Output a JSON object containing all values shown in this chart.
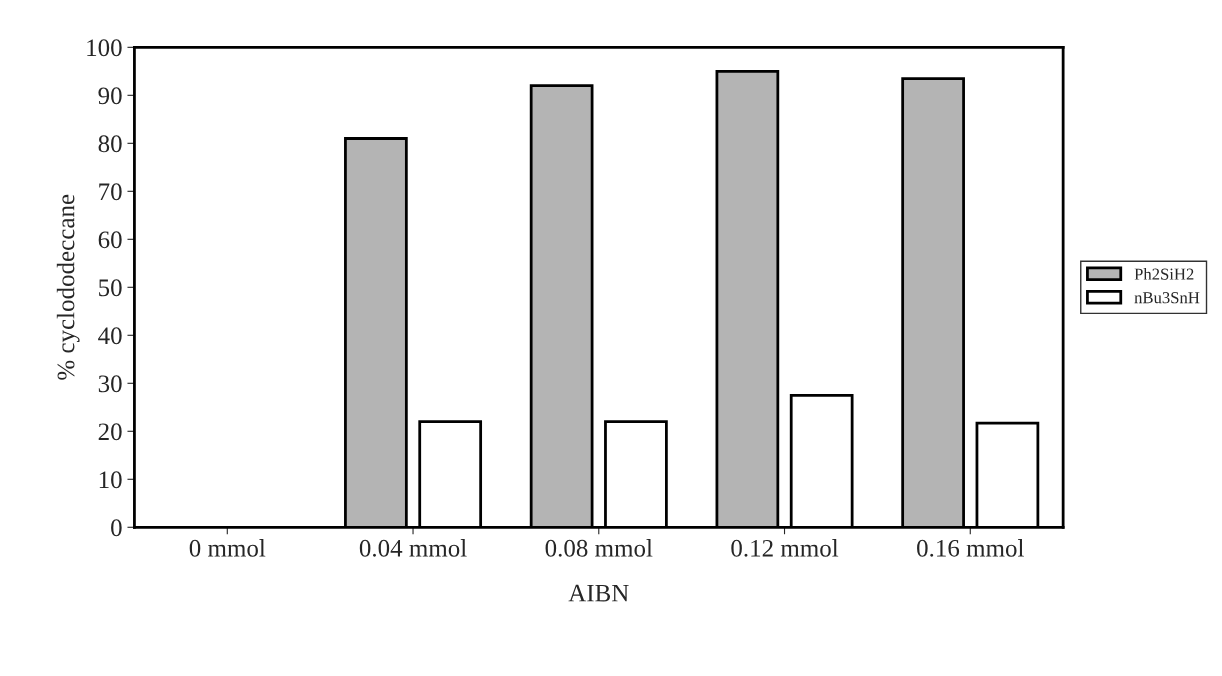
{
  "chart_data": {
    "type": "bar",
    "xlabel": "AIBN",
    "ylabel": "% cyclododeccane",
    "categories": [
      "0 mmol",
      "0.04 mmol",
      "0.08 mmol",
      "0.12 mmol",
      "0.16 mmol"
    ],
    "series": [
      {
        "name": "Ph2SiH2",
        "color": "#b4b4b4",
        "values": [
          0,
          81,
          92,
          95,
          93.5
        ]
      },
      {
        "name": "nBu3SnH",
        "color": "#ffffff",
        "values": [
          0,
          22,
          22,
          27.5,
          21.7
        ]
      }
    ],
    "ylim": [
      0,
      100
    ],
    "yticks": [
      0,
      10,
      20,
      30,
      40,
      50,
      60,
      70,
      80,
      90,
      100
    ],
    "grid": false,
    "legend": "right"
  }
}
